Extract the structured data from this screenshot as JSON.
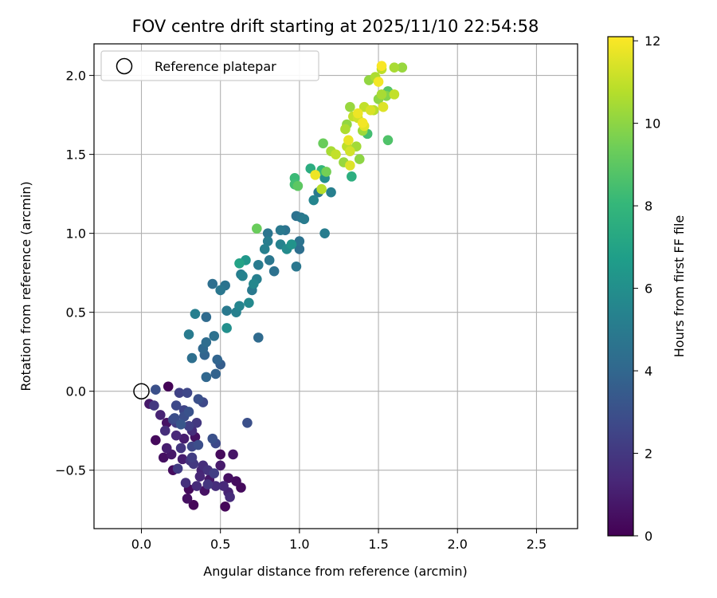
{
  "chart_data": {
    "type": "scatter",
    "title": "FOV centre drift starting at 2025/11/10 22:54:58",
    "xlabel": "Angular distance from reference (arcmin)",
    "ylabel": "Rotation from reference (arcmin)",
    "xlim": [
      -0.3,
      2.76
    ],
    "ylim": [
      -0.87,
      2.2
    ],
    "xticks": [
      0.0,
      0.5,
      1.0,
      1.5,
      2.0,
      2.5
    ],
    "xtick_labels": [
      "0.0",
      "0.5",
      "1.0",
      "1.5",
      "2.0",
      "2.5"
    ],
    "yticks": [
      -0.5,
      0.0,
      0.5,
      1.0,
      1.5,
      2.0
    ],
    "ytick_labels": [
      "−0.5",
      "0.0",
      "0.5",
      "1.0",
      "1.5",
      "2.0"
    ],
    "grid": true,
    "legend": {
      "location": "upper-left",
      "label": "Reference platepar"
    },
    "reference_point": {
      "x": 0.0,
      "y": 0.0
    },
    "colorbar": {
      "label": "Hours from first FF file",
      "range": [
        0,
        12.1
      ],
      "ticks": [
        0,
        2,
        4,
        6,
        8,
        10,
        12
      ],
      "tick_labels": [
        "0",
        "2",
        "4",
        "6",
        "8",
        "10",
        "12"
      ],
      "colormap_stops": [
        "#440154",
        "#482878",
        "#3e4989",
        "#31688e",
        "#26828e",
        "#1f9e89",
        "#35b779",
        "#6ece58",
        "#b5de2b",
        "#fde725"
      ]
    },
    "points": [
      {
        "x": 0.09,
        "y": -0.31,
        "h": 0.3
      },
      {
        "x": 0.14,
        "y": -0.42,
        "h": 0.5
      },
      {
        "x": 0.19,
        "y": -0.4,
        "h": 0.8
      },
      {
        "x": 0.2,
        "y": -0.5,
        "h": 0.4
      },
      {
        "x": 0.26,
        "y": -0.43,
        "h": 1.0
      },
      {
        "x": 0.3,
        "y": -0.62,
        "h": 0.3
      },
      {
        "x": 0.29,
        "y": -0.68,
        "h": 0.5
      },
      {
        "x": 0.33,
        "y": -0.72,
        "h": 0.2
      },
      {
        "x": 0.4,
        "y": -0.63,
        "h": 0.6
      },
      {
        "x": 0.43,
        "y": -0.56,
        "h": 0.8
      },
      {
        "x": 0.53,
        "y": -0.73,
        "h": 0.2
      },
      {
        "x": 0.6,
        "y": -0.57,
        "h": 0.4
      },
      {
        "x": 0.63,
        "y": -0.61,
        "h": 0.3
      },
      {
        "x": 0.5,
        "y": -0.47,
        "h": 0.9
      },
      {
        "x": 0.55,
        "y": -0.55,
        "h": 0.5
      },
      {
        "x": 0.58,
        "y": -0.4,
        "h": 0.7
      },
      {
        "x": 0.5,
        "y": -0.4,
        "h": 0.3
      },
      {
        "x": 0.38,
        "y": -0.5,
        "h": 1.2
      },
      {
        "x": 0.35,
        "y": -0.6,
        "h": 1.5
      },
      {
        "x": 0.17,
        "y": 0.03,
        "h": 0.1
      },
      {
        "x": 0.15,
        "y": -0.25,
        "h": 1.6
      },
      {
        "x": 0.16,
        "y": -0.36,
        "h": 1.0
      },
      {
        "x": 0.08,
        "y": -0.09,
        "h": 2.0
      },
      {
        "x": 0.05,
        "y": -0.08,
        "h": 0.8
      },
      {
        "x": 0.12,
        "y": -0.15,
        "h": 1.2
      },
      {
        "x": 0.16,
        "y": -0.2,
        "h": 0.6
      },
      {
        "x": 0.22,
        "y": -0.28,
        "h": 1.4
      },
      {
        "x": 0.27,
        "y": -0.3,
        "h": 1.0
      },
      {
        "x": 0.34,
        "y": -0.29,
        "h": 0.5
      },
      {
        "x": 0.31,
        "y": -0.44,
        "h": 1.8
      },
      {
        "x": 0.23,
        "y": -0.49,
        "h": 2.1
      },
      {
        "x": 0.28,
        "y": -0.58,
        "h": 1.7
      },
      {
        "x": 0.37,
        "y": -0.54,
        "h": 1.3
      },
      {
        "x": 0.42,
        "y": -0.59,
        "h": 1.9
      },
      {
        "x": 0.47,
        "y": -0.6,
        "h": 1.6
      },
      {
        "x": 0.52,
        "y": -0.6,
        "h": 1.4
      },
      {
        "x": 0.55,
        "y": -0.64,
        "h": 1.2
      },
      {
        "x": 0.56,
        "y": -0.67,
        "h": 1.5
      },
      {
        "x": 0.46,
        "y": -0.52,
        "h": 2.3
      },
      {
        "x": 0.39,
        "y": -0.47,
        "h": 1.6
      },
      {
        "x": 0.25,
        "y": -0.36,
        "h": 1.9
      },
      {
        "x": 0.2,
        "y": -0.18,
        "h": 2.6
      },
      {
        "x": 0.22,
        "y": -0.09,
        "h": 2.7
      },
      {
        "x": 0.27,
        "y": -0.16,
        "h": 2.9
      },
      {
        "x": 0.3,
        "y": -0.22,
        "h": 2.3
      },
      {
        "x": 0.32,
        "y": -0.25,
        "h": 1.6
      },
      {
        "x": 0.35,
        "y": -0.2,
        "h": 2.0
      },
      {
        "x": 0.27,
        "y": -0.12,
        "h": 2.5
      },
      {
        "x": 0.22,
        "y": -0.2,
        "h": 2.2
      },
      {
        "x": 0.3,
        "y": -0.13,
        "h": 3.1
      },
      {
        "x": 0.45,
        "y": -0.3,
        "h": 3.0
      },
      {
        "x": 0.47,
        "y": -0.33,
        "h": 2.7
      },
      {
        "x": 0.32,
        "y": -0.35,
        "h": 2.6
      },
      {
        "x": 0.36,
        "y": -0.34,
        "h": 2.9
      },
      {
        "x": 0.32,
        "y": -0.42,
        "h": 2.2
      },
      {
        "x": 0.33,
        "y": -0.46,
        "h": 2.0
      },
      {
        "x": 0.42,
        "y": -0.5,
        "h": 1.8
      },
      {
        "x": 0.25,
        "y": -0.21,
        "h": 3.3
      },
      {
        "x": 0.36,
        "y": -0.05,
        "h": 3.0
      },
      {
        "x": 0.39,
        "y": -0.07,
        "h": 2.7
      },
      {
        "x": 0.24,
        "y": -0.01,
        "h": 2.4
      },
      {
        "x": 0.29,
        "y": -0.01,
        "h": 2.6
      },
      {
        "x": 0.21,
        "y": -0.17,
        "h": 2.9
      },
      {
        "x": 0.09,
        "y": 0.01,
        "h": 3.0
      },
      {
        "x": 0.47,
        "y": 0.11,
        "h": 3.8
      },
      {
        "x": 0.41,
        "y": 0.09,
        "h": 4.0
      },
      {
        "x": 0.48,
        "y": 0.2,
        "h": 3.9
      },
      {
        "x": 0.5,
        "y": 0.17,
        "h": 3.6
      },
      {
        "x": 0.39,
        "y": 0.27,
        "h": 4.1
      },
      {
        "x": 0.41,
        "y": 0.31,
        "h": 4.3
      },
      {
        "x": 0.4,
        "y": 0.23,
        "h": 3.9
      },
      {
        "x": 0.46,
        "y": 0.35,
        "h": 4.5
      },
      {
        "x": 0.32,
        "y": 0.21,
        "h": 4.4
      },
      {
        "x": 0.3,
        "y": 0.36,
        "h": 5.0
      },
      {
        "x": 0.34,
        "y": 0.49,
        "h": 5.2
      },
      {
        "x": 0.41,
        "y": 0.47,
        "h": 4.2
      },
      {
        "x": 0.45,
        "y": 0.68,
        "h": 4.4
      },
      {
        "x": 0.5,
        "y": 0.64,
        "h": 4.8
      },
      {
        "x": 0.53,
        "y": 0.67,
        "h": 4.6
      },
      {
        "x": 0.54,
        "y": 0.51,
        "h": 4.9
      },
      {
        "x": 0.6,
        "y": 0.5,
        "h": 5.3
      },
      {
        "x": 0.62,
        "y": 0.54,
        "h": 5.5
      },
      {
        "x": 0.54,
        "y": 0.4,
        "h": 6.0
      },
      {
        "x": 0.67,
        "y": -0.2,
        "h": 3.0
      },
      {
        "x": 0.74,
        "y": 0.34,
        "h": 4.2
      },
      {
        "x": 0.63,
        "y": 0.74,
        "h": 5.1
      },
      {
        "x": 0.64,
        "y": 0.73,
        "h": 5.4
      },
      {
        "x": 0.68,
        "y": 0.56,
        "h": 5.7
      },
      {
        "x": 0.7,
        "y": 0.64,
        "h": 4.9
      },
      {
        "x": 0.71,
        "y": 0.68,
        "h": 5.6
      },
      {
        "x": 0.73,
        "y": 0.71,
        "h": 5.2
      },
      {
        "x": 0.74,
        "y": 0.8,
        "h": 5.0
      },
      {
        "x": 0.78,
        "y": 0.9,
        "h": 5.3
      },
      {
        "x": 0.81,
        "y": 0.83,
        "h": 4.8
      },
      {
        "x": 0.84,
        "y": 0.76,
        "h": 4.5
      },
      {
        "x": 0.8,
        "y": 0.95,
        "h": 5.1
      },
      {
        "x": 0.8,
        "y": 1.0,
        "h": 4.7
      },
      {
        "x": 0.88,
        "y": 1.02,
        "h": 4.9
      },
      {
        "x": 0.91,
        "y": 1.02,
        "h": 4.6
      },
      {
        "x": 0.88,
        "y": 0.93,
        "h": 5.4
      },
      {
        "x": 0.92,
        "y": 0.9,
        "h": 5.8
      },
      {
        "x": 0.95,
        "y": 0.93,
        "h": 6.2
      },
      {
        "x": 0.98,
        "y": 0.79,
        "h": 4.8
      },
      {
        "x": 1.0,
        "y": 0.9,
        "h": 4.4
      },
      {
        "x": 1.0,
        "y": 0.95,
        "h": 4.6
      },
      {
        "x": 0.98,
        "y": 1.11,
        "h": 4.5
      },
      {
        "x": 1.01,
        "y": 1.1,
        "h": 4.7
      },
      {
        "x": 1.03,
        "y": 1.09,
        "h": 5.0
      },
      {
        "x": 1.12,
        "y": 1.26,
        "h": 4.9
      },
      {
        "x": 1.09,
        "y": 1.21,
        "h": 5.5
      },
      {
        "x": 1.16,
        "y": 1.35,
        "h": 6.0
      },
      {
        "x": 1.2,
        "y": 1.26,
        "h": 5.2
      },
      {
        "x": 1.16,
        "y": 1.0,
        "h": 5.1
      },
      {
        "x": 0.62,
        "y": 0.81,
        "h": 7.0
      },
      {
        "x": 0.66,
        "y": 0.83,
        "h": 6.4
      },
      {
        "x": 0.73,
        "y": 1.03,
        "h": 9.3
      },
      {
        "x": 0.97,
        "y": 1.35,
        "h": 8.2
      },
      {
        "x": 0.99,
        "y": 1.3,
        "h": 9.0
      },
      {
        "x": 0.97,
        "y": 1.31,
        "h": 8.4
      },
      {
        "x": 1.07,
        "y": 1.41,
        "h": 7.5
      },
      {
        "x": 1.14,
        "y": 1.4,
        "h": 8.0
      },
      {
        "x": 1.17,
        "y": 1.39,
        "h": 9.5
      },
      {
        "x": 1.15,
        "y": 1.57,
        "h": 9.3
      },
      {
        "x": 1.2,
        "y": 1.52,
        "h": 10.5
      },
      {
        "x": 1.23,
        "y": 1.5,
        "h": 11.0
      },
      {
        "x": 1.14,
        "y": 1.28,
        "h": 10.8
      },
      {
        "x": 1.1,
        "y": 1.37,
        "h": 11.8
      },
      {
        "x": 1.28,
        "y": 1.45,
        "h": 10.2
      },
      {
        "x": 1.32,
        "y": 1.43,
        "h": 11.5
      },
      {
        "x": 1.3,
        "y": 1.55,
        "h": 10.9
      },
      {
        "x": 1.31,
        "y": 1.59,
        "h": 11.7
      },
      {
        "x": 1.32,
        "y": 1.52,
        "h": 11.3
      },
      {
        "x": 1.36,
        "y": 1.55,
        "h": 10.4
      },
      {
        "x": 1.38,
        "y": 1.47,
        "h": 10.0
      },
      {
        "x": 1.33,
        "y": 1.36,
        "h": 7.6
      },
      {
        "x": 1.29,
        "y": 1.66,
        "h": 10.6
      },
      {
        "x": 1.3,
        "y": 1.69,
        "h": 10.1
      },
      {
        "x": 1.34,
        "y": 1.74,
        "h": 11.0
      },
      {
        "x": 1.37,
        "y": 1.76,
        "h": 11.8
      },
      {
        "x": 1.4,
        "y": 1.7,
        "h": 11.9
      },
      {
        "x": 1.4,
        "y": 1.65,
        "h": 10.3
      },
      {
        "x": 1.41,
        "y": 1.68,
        "h": 11.6
      },
      {
        "x": 1.43,
        "y": 1.63,
        "h": 8.4
      },
      {
        "x": 1.32,
        "y": 1.8,
        "h": 10.2
      },
      {
        "x": 1.37,
        "y": 1.73,
        "h": 11.2
      },
      {
        "x": 1.41,
        "y": 1.8,
        "h": 11.0
      },
      {
        "x": 1.45,
        "y": 1.78,
        "h": 11.4
      },
      {
        "x": 1.47,
        "y": 1.78,
        "h": 10.8
      },
      {
        "x": 1.5,
        "y": 1.85,
        "h": 10.0
      },
      {
        "x": 1.52,
        "y": 1.88,
        "h": 10.5
      },
      {
        "x": 1.53,
        "y": 1.8,
        "h": 11.5
      },
      {
        "x": 1.55,
        "y": 1.87,
        "h": 9.8
      },
      {
        "x": 1.56,
        "y": 1.9,
        "h": 8.9
      },
      {
        "x": 1.56,
        "y": 1.59,
        "h": 8.7
      },
      {
        "x": 1.6,
        "y": 1.88,
        "h": 11.0
      },
      {
        "x": 1.44,
        "y": 1.97,
        "h": 10.1
      },
      {
        "x": 1.5,
        "y": 1.96,
        "h": 11.9
      },
      {
        "x": 1.48,
        "y": 1.99,
        "h": 10.6
      },
      {
        "x": 1.52,
        "y": 2.06,
        "h": 12.0
      },
      {
        "x": 1.52,
        "y": 2.04,
        "h": 10.9
      },
      {
        "x": 1.6,
        "y": 2.05,
        "h": 10.5
      },
      {
        "x": 1.65,
        "y": 2.05,
        "h": 10.2
      }
    ]
  }
}
